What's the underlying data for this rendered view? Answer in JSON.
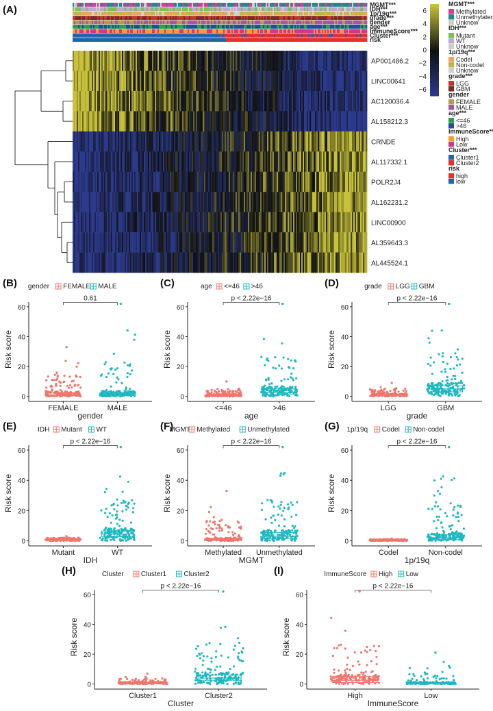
{
  "panels": {
    "A": "(A)",
    "B": "(B)",
    "C": "(C)",
    "D": "(D)",
    "E": "(E)",
    "F": "(F)",
    "G": "(G)",
    "H": "(H)",
    "I": "(I)"
  },
  "colors": {
    "heat_low": "#2b3a8c",
    "heat_mid": "#111111",
    "heat_high": "#c8c23a",
    "group1": "#f0766d",
    "group2": "#1fb8c0",
    "bracket": "#444444"
  },
  "chart_data": [
    {
      "panel": "A",
      "type": "heatmap",
      "title": "",
      "rows": [
        "AP001486.2",
        "LINC00641",
        "AC120036.4",
        "AL158212.3",
        "CRNDE",
        "AL117332.1",
        "POLR2J4",
        "AL162231.2",
        "LINC00900",
        "AL359643.3",
        "AL445524.1"
      ],
      "row_pattern": [
        "high-to-low",
        "high-to-low",
        "high-to-low",
        "high-to-low",
        "low-to-high",
        "low-to-high",
        "low-to-high",
        "low-to-high",
        "low-to-high",
        "low-to-high",
        "low-to-high"
      ],
      "colorbar": {
        "ticks": [
          "6",
          "4",
          "2",
          "0",
          "−2",
          "−4",
          "−6"
        ],
        "values": [
          6,
          4,
          2,
          0,
          -2,
          -4,
          -6
        ],
        "range": [
          -7,
          7
        ]
      },
      "annotation_tracks": [
        "MGMT***",
        "IDH***",
        "1p/19q***",
        "grade***",
        "gender",
        "age***",
        "ImmuneScore***",
        "Cluster***",
        "risk"
      ],
      "legend": [
        {
          "title": "MGMT***",
          "items": [
            {
              "label": "Methylated",
              "color": "#d63d96"
            },
            {
              "label": "Unmethylated",
              "color": "#1f8a8a"
            },
            {
              "label": "Unknow",
              "color": "#cfcfcf"
            }
          ]
        },
        {
          "title": "IDH***",
          "items": [
            {
              "label": "Mutant",
              "color": "#7ac34a"
            },
            {
              "label": "WT",
              "color": "#bca9d4"
            },
            {
              "label": "Unknow",
              "color": "#cfcfcf"
            }
          ]
        },
        {
          "title": "1p/19q***",
          "items": [
            {
              "label": "Codel",
              "color": "#f3a25c"
            },
            {
              "label": "Non-codel",
              "color": "#b9b94a"
            },
            {
              "label": "Unknow",
              "color": "#cfcfcf"
            }
          ]
        },
        {
          "title": "grade***",
          "items": [
            {
              "label": "LGG",
              "color": "#c0392b"
            },
            {
              "label": "GBM",
              "color": "#7d2a2a"
            }
          ]
        },
        {
          "title": "gender",
          "items": [
            {
              "label": "FEMALE",
              "color": "#b59a50"
            },
            {
              "label": "MALE",
              "color": "#a657a3"
            }
          ]
        },
        {
          "title": "age***",
          "items": [
            {
              "label": "<=46",
              "color": "#22a24a"
            },
            {
              "label": ">46",
              "color": "#274b9a"
            }
          ]
        },
        {
          "title": "ImmuneScore***",
          "items": [
            {
              "label": "High",
              "color": "#f39c32"
            },
            {
              "label": "Low",
              "color": "#d4358f"
            }
          ]
        },
        {
          "title": "Cluster***",
          "items": [
            {
              "label": "Cluster1",
              "color": "#2166ac"
            },
            {
              "label": "Cluster2",
              "color": "#e8302a"
            }
          ]
        },
        {
          "title": "risk",
          "items": [
            {
              "label": "high",
              "color": "#e8302a"
            },
            {
              "label": "low",
              "color": "#2166ac"
            }
          ]
        }
      ]
    },
    {
      "panel": "B",
      "type": "scatter",
      "subtype": "box-jitter",
      "legend_title": "gender",
      "categories": [
        "FEMALE",
        "MALE"
      ],
      "xlabel": "gender",
      "ylabel": "Risk score",
      "pvalue": "0.61",
      "ylim": [
        -2,
        65
      ],
      "yticks": [
        0,
        20,
        40,
        60
      ],
      "medians": [
        1.0,
        1.2
      ],
      "q1": [
        0.4,
        0.5
      ],
      "q3": [
        2.5,
        2.8
      ],
      "maxima": [
        33,
        62
      ]
    },
    {
      "panel": "C",
      "type": "scatter",
      "subtype": "box-jitter",
      "legend_title": "age",
      "categories": [
        "<=46",
        ">46"
      ],
      "xlabel": "age",
      "ylabel": "Risk score",
      "pvalue": "p < 2.22e−16",
      "ylim": [
        -2,
        65
      ],
      "yticks": [
        0,
        20,
        40,
        60
      ],
      "medians": [
        0.5,
        2.5
      ],
      "q1": [
        0.2,
        1.0
      ],
      "q3": [
        1.2,
        5.0
      ],
      "maxima": [
        10,
        62
      ]
    },
    {
      "panel": "D",
      "type": "scatter",
      "subtype": "box-jitter",
      "legend_title": "grade",
      "categories": [
        "LGG",
        "GBM"
      ],
      "xlabel": "grade",
      "ylabel": "Risk score",
      "pvalue": "p < 2.22e−16",
      "ylim": [
        -2,
        65
      ],
      "yticks": [
        0,
        20,
        40,
        60
      ],
      "medians": [
        0.6,
        5.0
      ],
      "q1": [
        0.3,
        3.0
      ],
      "q3": [
        1.3,
        7.0
      ],
      "maxima": [
        9,
        62
      ]
    },
    {
      "panel": "E",
      "type": "scatter",
      "subtype": "box-jitter",
      "legend_title": "IDH",
      "categories": [
        "Mutant",
        "WT"
      ],
      "xlabel": "IDH",
      "ylabel": "Risk score",
      "pvalue": "p < 2.22e−16",
      "ylim": [
        -2,
        65
      ],
      "yticks": [
        0,
        20,
        40,
        60
      ],
      "medians": [
        0.5,
        4.5
      ],
      "q1": [
        0.2,
        2.8
      ],
      "q3": [
        1.0,
        6.5
      ],
      "maxima": [
        3,
        62
      ]
    },
    {
      "panel": "F",
      "type": "scatter",
      "subtype": "box-jitter",
      "legend_title": "MGMT",
      "categories": [
        "Methylated",
        "Unmethylated"
      ],
      "xlabel": "MGMT",
      "ylabel": "Risk score",
      "pvalue": "p < 2.22e−16",
      "ylim": [
        -2,
        65
      ],
      "yticks": [
        0,
        20,
        40,
        60
      ],
      "medians": [
        0.7,
        3.0
      ],
      "q1": [
        0.3,
        1.5
      ],
      "q3": [
        1.6,
        5.5
      ],
      "maxima": [
        33,
        62
      ]
    },
    {
      "panel": "G",
      "type": "scatter",
      "subtype": "box-jitter",
      "legend_title": "1p/19q",
      "categories": [
        "Codel",
        "Non-codel"
      ],
      "xlabel": "1p/19q",
      "ylabel": "Risk score",
      "pvalue": "p < 2.22e−16",
      "ylim": [
        -2,
        65
      ],
      "yticks": [
        0,
        20,
        40,
        60
      ],
      "medians": [
        0.3,
        2.0
      ],
      "q1": [
        0.1,
        0.8
      ],
      "q3": [
        0.6,
        4.0
      ],
      "maxima": [
        1.5,
        62
      ]
    },
    {
      "panel": "H",
      "type": "scatter",
      "subtype": "box-jitter",
      "legend_title": "Cluster",
      "categories": [
        "Cluster1",
        "Cluster2"
      ],
      "xlabel": "Cluster",
      "ylabel": "Risk score",
      "pvalue": "p < 2.22e−16",
      "ylim": [
        -2,
        65
      ],
      "yticks": [
        0,
        20,
        40,
        60
      ],
      "medians": [
        0.5,
        4.0
      ],
      "q1": [
        0.2,
        2.5
      ],
      "q3": [
        1.0,
        6.0
      ],
      "maxima": [
        7,
        62
      ]
    },
    {
      "panel": "I",
      "type": "scatter",
      "subtype": "box-jitter",
      "legend_title": "ImmuneScore",
      "categories": [
        "High",
        "Low"
      ],
      "xlabel": "ImmuneScore",
      "ylabel": "Risk score",
      "pvalue": "p < 2.22e−16",
      "ylim": [
        -2,
        65
      ],
      "yticks": [
        0,
        20,
        40,
        60
      ],
      "medians": [
        2.5,
        0.5
      ],
      "q1": [
        1.0,
        0.2
      ],
      "q3": [
        5.0,
        1.0
      ],
      "maxima": [
        62,
        21
      ]
    }
  ]
}
